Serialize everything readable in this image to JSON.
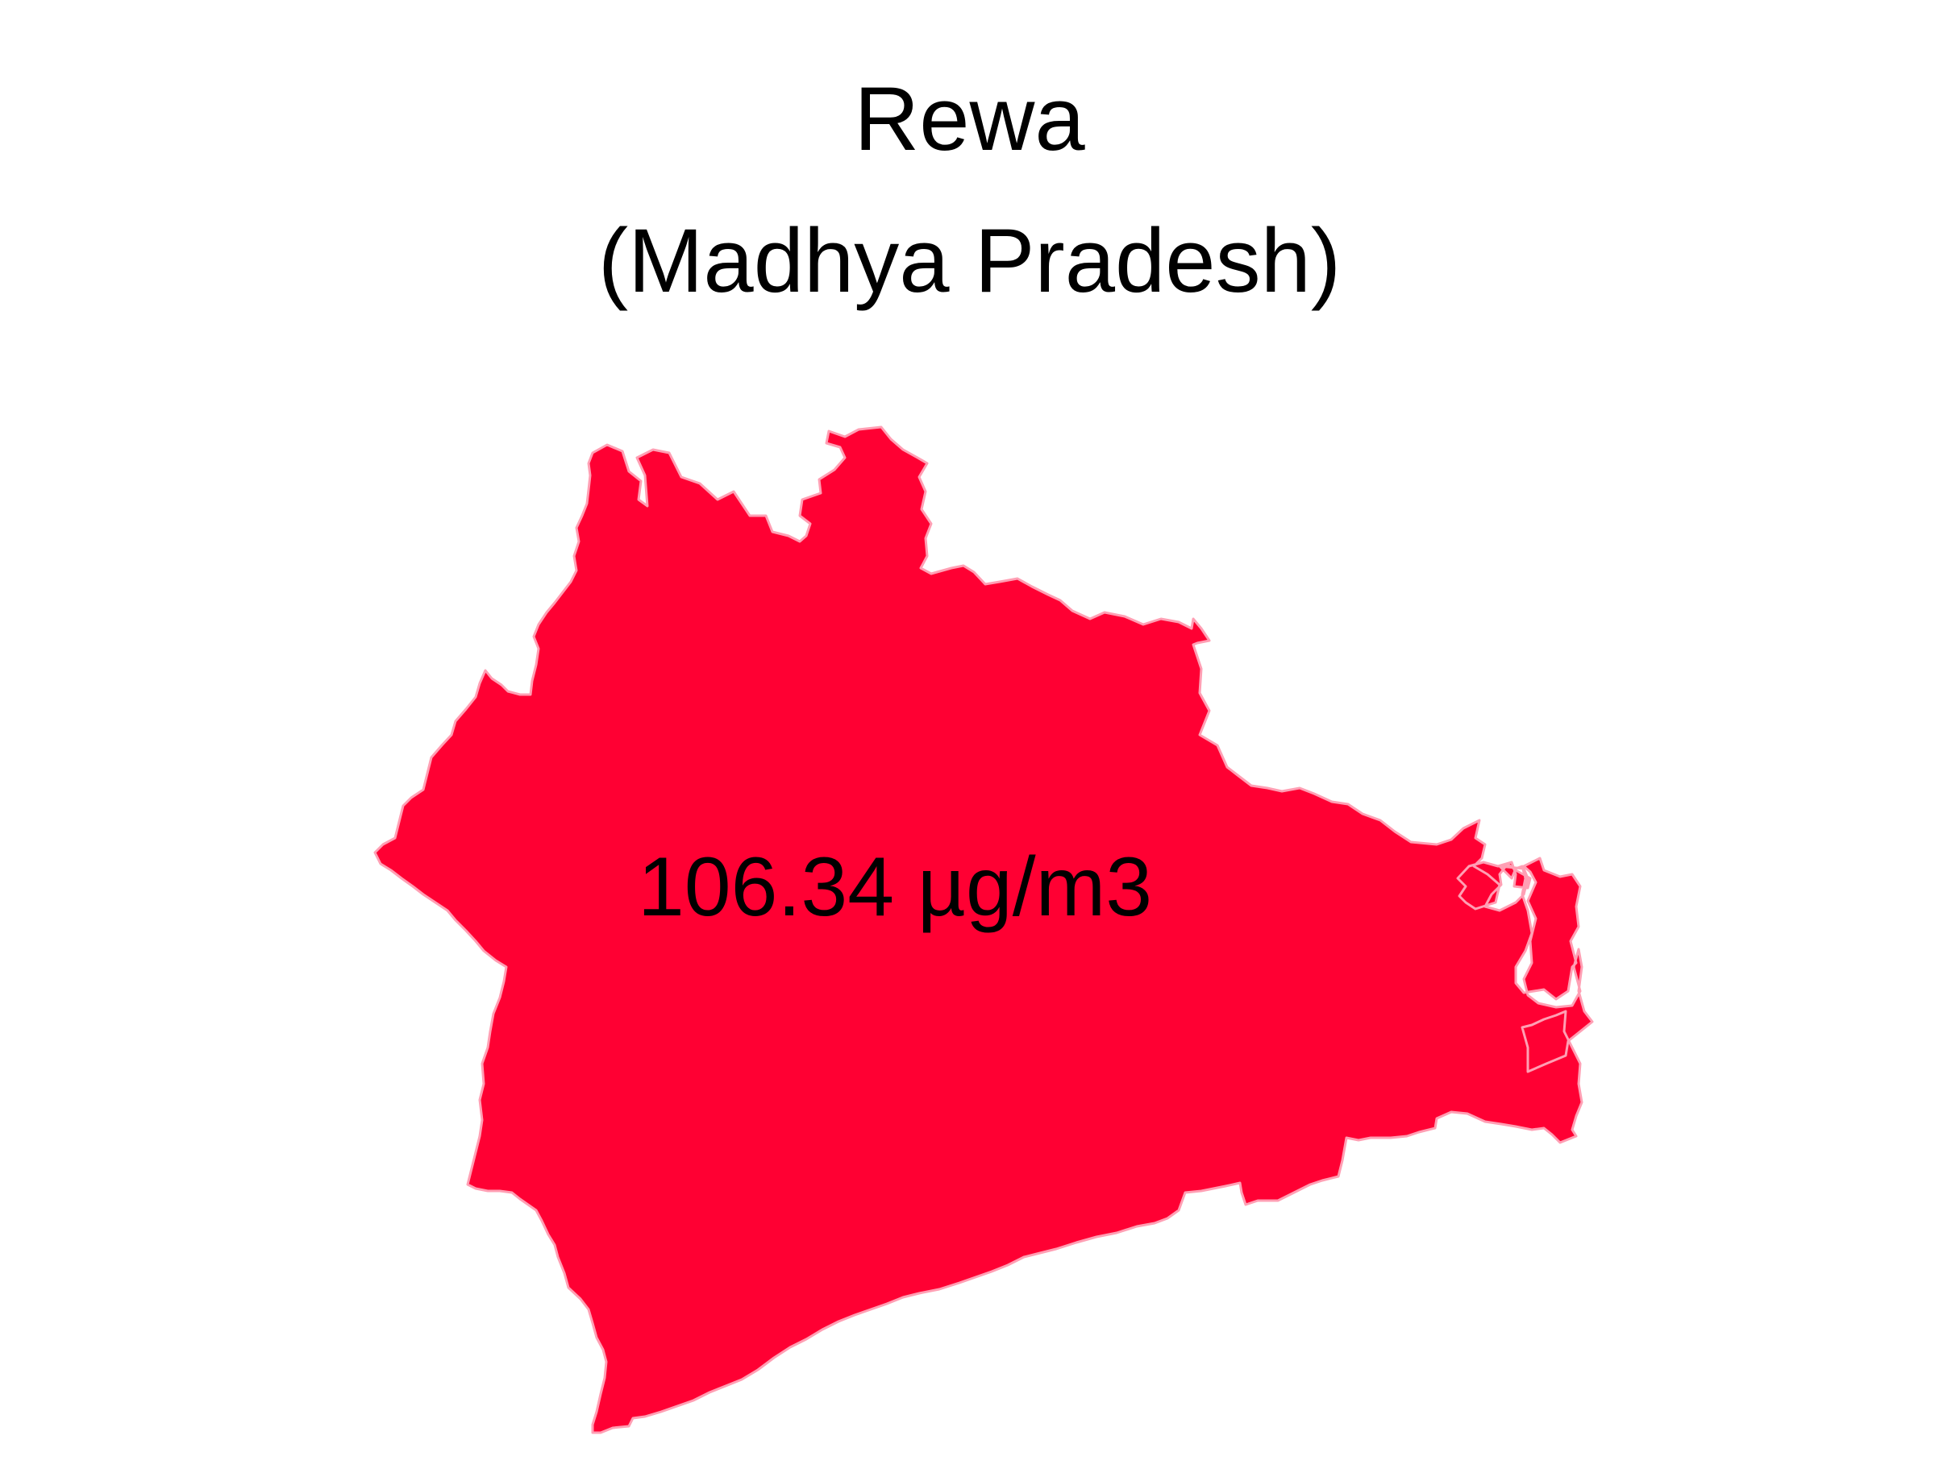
{
  "map": {
    "title": "Rewa",
    "subtitle": "(Madhya Pradesh)",
    "region_name": "Rewa",
    "value_label": "106.34 µg/m3",
    "fill_color": "#ff0033",
    "border_color": "#ff9fb4",
    "background_color": "#ffffff"
  }
}
